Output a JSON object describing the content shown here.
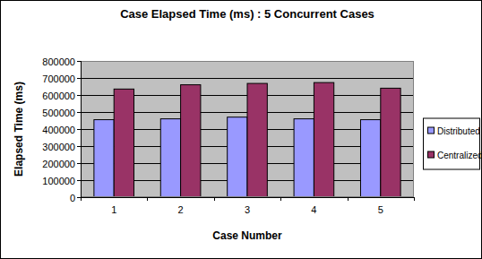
{
  "chart_data": {
    "type": "bar",
    "title": "Case Elapsed Time (ms) : 5 Concurrent Cases",
    "x_label": "Case Number",
    "y_label": "Elapsed Time (ms)",
    "categories": [
      "1",
      "2",
      "3",
      "4",
      "5"
    ],
    "series": [
      {
        "name": "Distributed",
        "color": "#9999ff",
        "values": [
          455000,
          460000,
          470000,
          460000,
          455000
        ]
      },
      {
        "name": "Centralized",
        "color": "#993366",
        "values": [
          635000,
          660000,
          668000,
          673000,
          640000
        ]
      }
    ],
    "ylim": [
      0,
      800000
    ],
    "yticks": [
      0,
      100000,
      200000,
      300000,
      400000,
      500000,
      600000,
      700000,
      800000
    ],
    "grid": true,
    "legend": "right"
  }
}
